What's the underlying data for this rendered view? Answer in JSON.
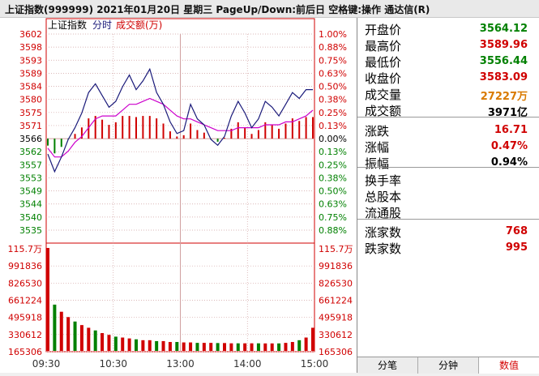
{
  "title": "上证指数(999999)  2021年01月20日  星期三  PageUp/Down:前后日  空格键:操作  通达信(R)",
  "chart": {
    "legend": {
      "name": "上证指数",
      "mode": "分时",
      "volume_label": "成交额(万)"
    },
    "price_ticks": [
      "3602",
      "3598",
      "3593",
      "3589",
      "3584",
      "3580",
      "3575",
      "3571",
      "3566",
      "3562",
      "3557",
      "3553",
      "3549",
      "3544",
      "3540",
      "3535"
    ],
    "pct_ticks": [
      "1.00%",
      "0.88%",
      "0.75%",
      "0.63%",
      "0.50%",
      "0.38%",
      "0.25%",
      "0.13%",
      "0.00%",
      "0.13%",
      "0.25%",
      "0.38%",
      "0.50%",
      "0.63%",
      "0.75%",
      "0.88%"
    ],
    "vol_ticks": [
      "115.7万",
      "991836",
      "826530",
      "661224",
      "495918",
      "330612",
      "165306"
    ],
    "time_ticks": [
      "09:30",
      "10:30",
      "13:00",
      "14:00",
      "15:00"
    ],
    "prev_close": 3566.38,
    "colors": {
      "index_line": "#1a1a7a",
      "avg_line": "#cc00cc",
      "up": "#d00000",
      "down": "#008000",
      "grid": "#d0a0a0",
      "axis_red": "#d00000",
      "axis_green": "#008000"
    }
  },
  "chart_data": {
    "type": "line",
    "title": "",
    "xlabel": "",
    "ylabel": "",
    "x_ticks": [
      "09:30",
      "10:30",
      "13:00",
      "14:00",
      "15:00"
    ],
    "ylim": [
      3535,
      3602
    ],
    "series": [
      {
        "name": "上证指数",
        "values": [
          3561,
          3555,
          3560,
          3566,
          3570,
          3575,
          3582,
          3585,
          3581,
          3577,
          3579,
          3584,
          3588,
          3583,
          3586,
          3590,
          3582,
          3578,
          3572,
          3568,
          3569,
          3578,
          3573,
          3571,
          3566,
          3564,
          3567,
          3574,
          3579,
          3575,
          3570,
          3573,
          3579,
          3577,
          3574,
          3578,
          3582,
          3580,
          3583,
          3583
        ]
      },
      {
        "name": "",
        "values": [
          3563,
          3560,
          3560,
          3562,
          3565,
          3567,
          3570,
          3573,
          3574,
          3574,
          3574,
          3576,
          3578,
          3578,
          3579,
          3580,
          3579,
          3578,
          3576,
          3574,
          3573,
          3573,
          3572,
          3571,
          3570,
          3569,
          3569,
          3569,
          3570,
          3570,
          3570,
          3570,
          3571,
          3571,
          3571,
          3572,
          3572,
          3573,
          3574,
          3576
        ]
      }
    ],
    "volume": {
      "ylim": [
        0,
        1157000
      ],
      "values": [
        1157000,
        520000,
        440000,
        380000,
        330000,
        290000,
        260000,
        230000,
        200000,
        180000,
        160000,
        150000,
        140000,
        130000,
        120000,
        120000,
        110000,
        110000,
        100000,
        100000,
        95000,
        95000,
        90000,
        90000,
        90000,
        88000,
        88000,
        85000,
        85000,
        85000,
        85000,
        85000,
        84000,
        84000,
        84000,
        90000,
        100000,
        120000,
        150000,
        260000
      ]
    }
  },
  "quotes": [
    {
      "label": "开盘价",
      "value": "3564.12",
      "color": "#008000"
    },
    {
      "label": "最高价",
      "value": "3589.96",
      "color": "#d00000"
    },
    {
      "label": "最低价",
      "value": "3556.44",
      "color": "#008000"
    },
    {
      "label": "收盘价",
      "value": "3583.09",
      "color": "#d00000"
    },
    {
      "label": "成交量",
      "value": "27227万",
      "color": "#d97a00"
    },
    {
      "label": "成交额",
      "value": "3971亿",
      "color": "#000000"
    },
    {
      "label": "涨跌",
      "value": "16.71",
      "color": "#d00000"
    },
    {
      "label": "涨幅",
      "value": "0.47%",
      "color": "#d00000"
    },
    {
      "label": "振幅",
      "value": "0.94%",
      "color": "#000000"
    },
    {
      "label": "换手率",
      "value": "",
      "color": "#000000"
    },
    {
      "label": "总股本",
      "value": "",
      "color": "#000000"
    },
    {
      "label": "流通股",
      "value": "",
      "color": "#000000"
    },
    {
      "label": "涨家数",
      "value": "768",
      "color": "#d00000"
    },
    {
      "label": "跌家数",
      "value": "995",
      "color": "#d00000"
    }
  ],
  "tabs": [
    "分笔",
    "分钟",
    "数值"
  ],
  "active_tab": 2
}
